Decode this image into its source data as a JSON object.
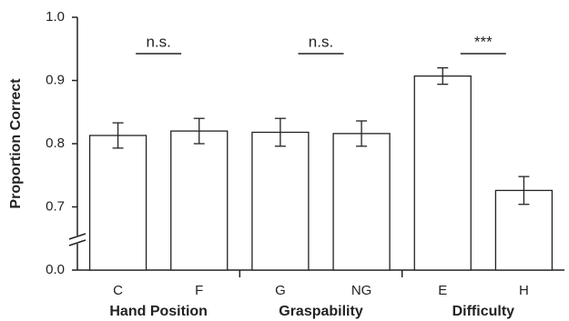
{
  "chart_data": {
    "type": "bar",
    "ylabel": "Proportion Correct",
    "categories": [
      "C",
      "F",
      "G",
      "NG",
      "E",
      "H"
    ],
    "values": [
      0.813,
      0.82,
      0.818,
      0.816,
      0.907,
      0.726
    ],
    "errors": [
      0.02,
      0.02,
      0.022,
      0.02,
      0.013,
      0.022
    ],
    "color": "#ffffff",
    "groups": [
      {
        "name": "Hand Position",
        "size": 2
      },
      {
        "name": "Graspability",
        "size": 2
      },
      {
        "name": "Difficulty",
        "size": 2
      }
    ],
    "annotations": [
      {
        "text": "n.s.",
        "between": [
          0,
          1
        ]
      },
      {
        "text": "n.s.",
        "between": [
          2,
          3
        ]
      },
      {
        "text": "***",
        "between": [
          4,
          5
        ]
      }
    ],
    "ylim": [
      0.0,
      1.0
    ],
    "axis_break": [
      0.0,
      0.6
    ],
    "yticks": [
      {
        "value": 0.0,
        "label": "0.0"
      },
      0.7,
      0.8,
      0.9,
      {
        "value": 1.0,
        "label": "1.0"
      }
    ],
    "grid": false
  }
}
